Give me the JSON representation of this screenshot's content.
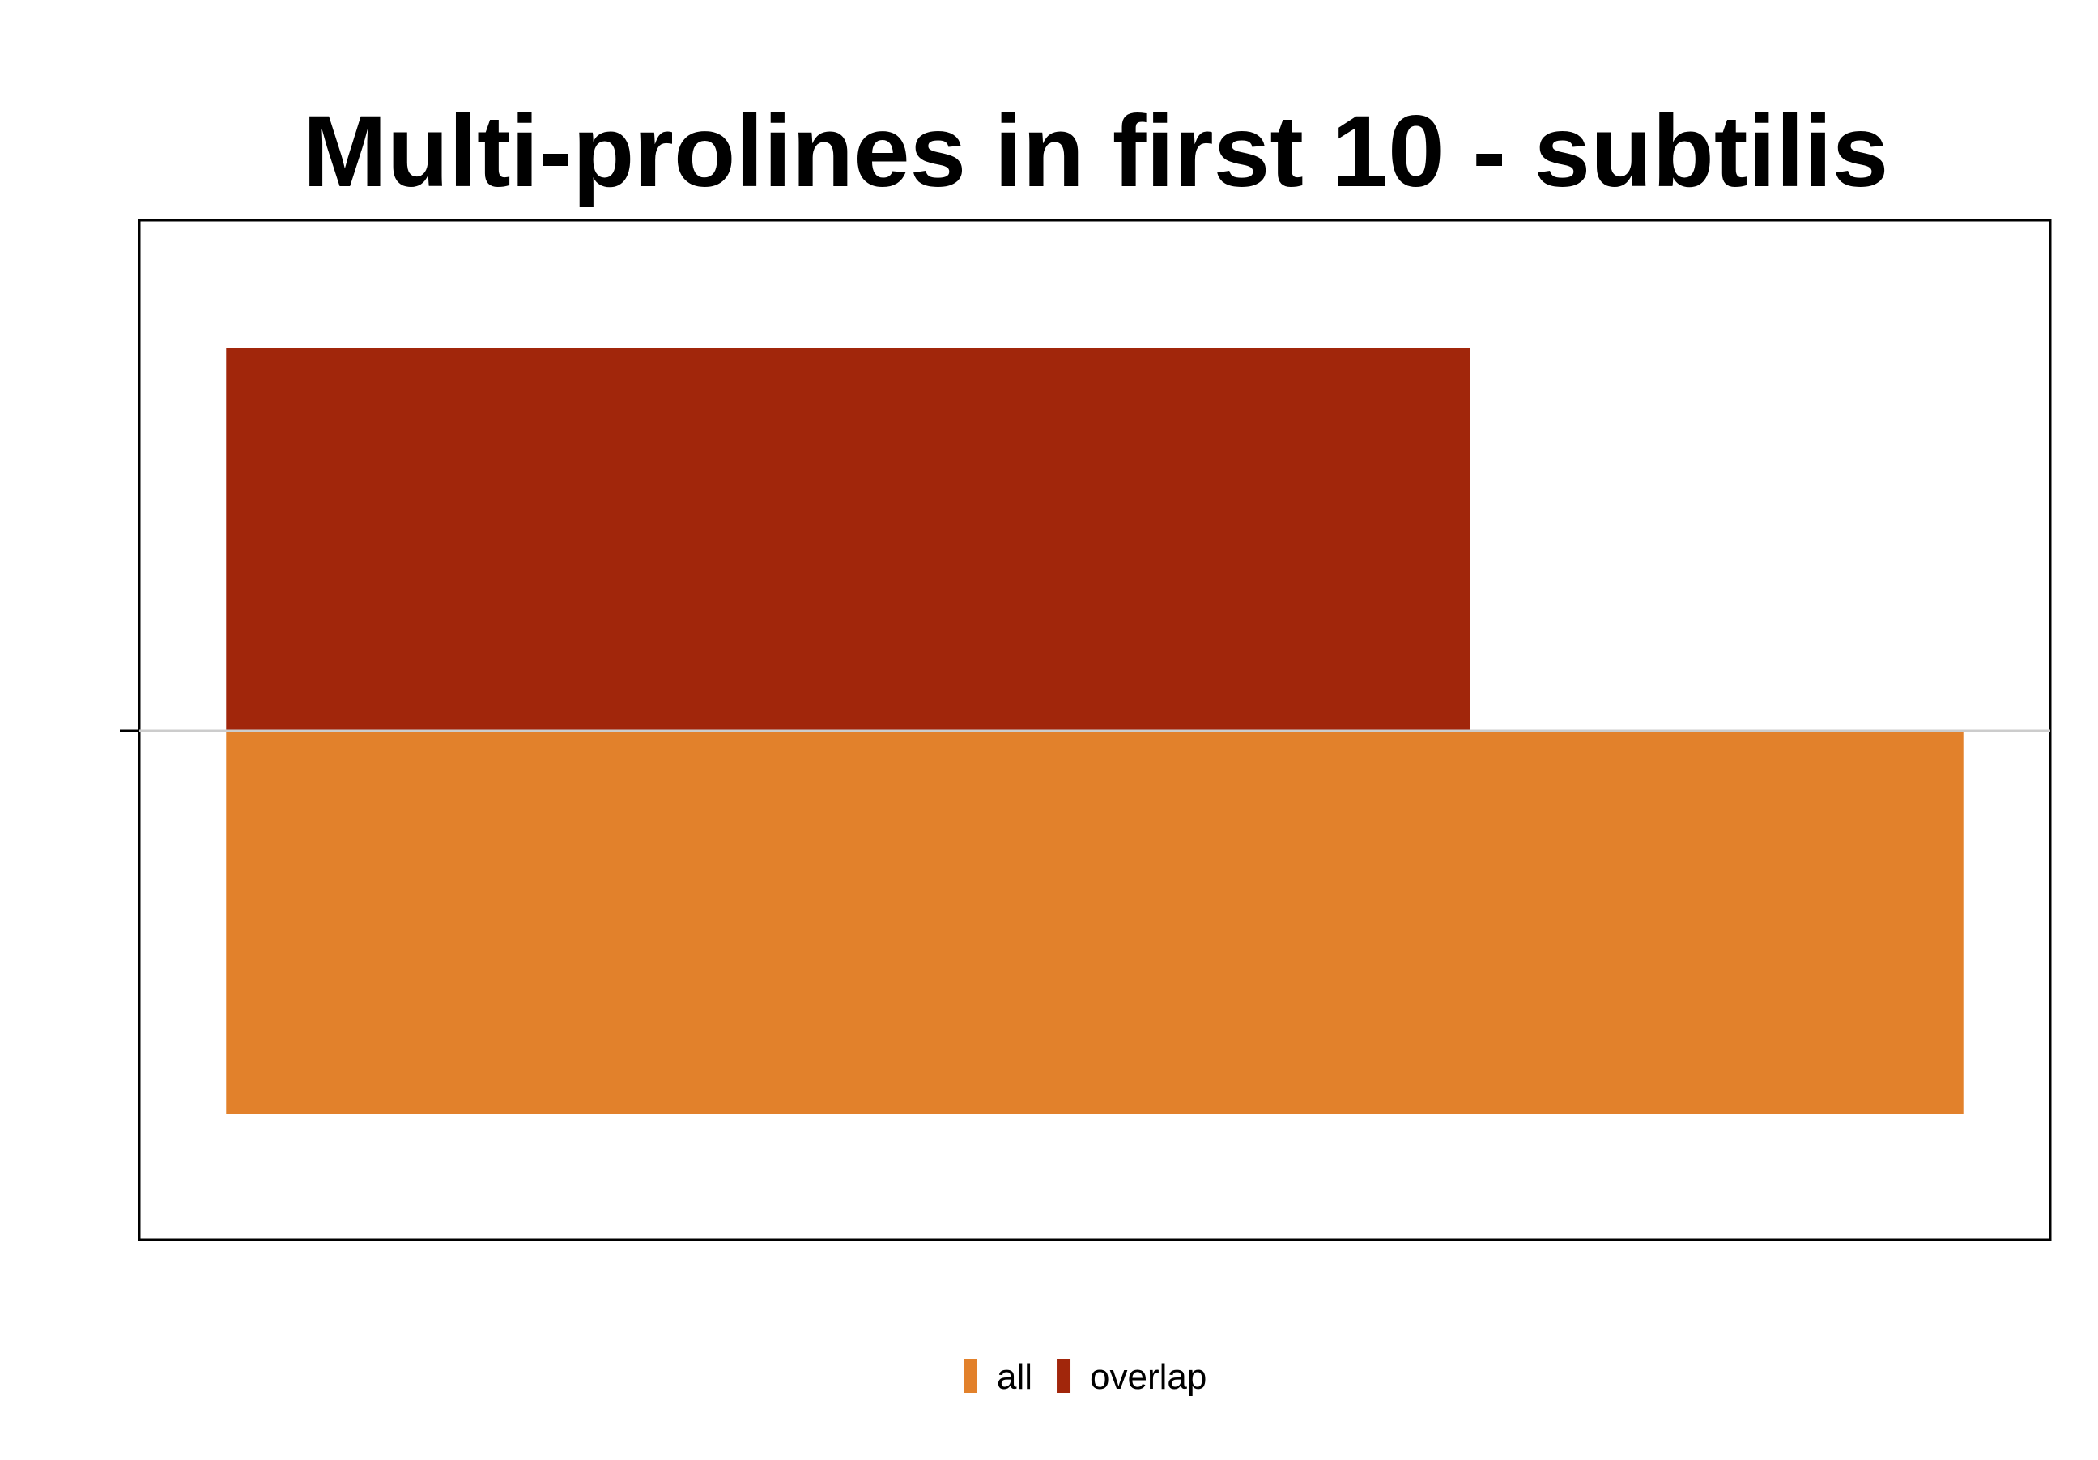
{
  "chart_data": {
    "type": "bar",
    "orientation": "horizontal",
    "stacked": false,
    "title": "Multi-prolines in first 10 - subtilis",
    "xlabel": "",
    "ylabel": "",
    "categories": [
      ""
    ],
    "series": [
      {
        "name": "all",
        "values": [
          1.0
        ],
        "color": "#E2812B"
      },
      {
        "name": "overlap",
        "values": [
          0.716
        ],
        "color": "#A1260B"
      }
    ],
    "xlim": [
      -0.05,
      1.05
    ],
    "axis_tick_labels_visible": false,
    "grid": false,
    "legend": {
      "position": "bottom",
      "items": [
        {
          "label": "all",
          "color": "#E2812B"
        },
        {
          "label": "overlap",
          "color": "#A1260B"
        }
      ]
    },
    "colors": {
      "frame": "#000000",
      "baseline": "#CCCCCC",
      "background": "#FFFFFF"
    }
  }
}
